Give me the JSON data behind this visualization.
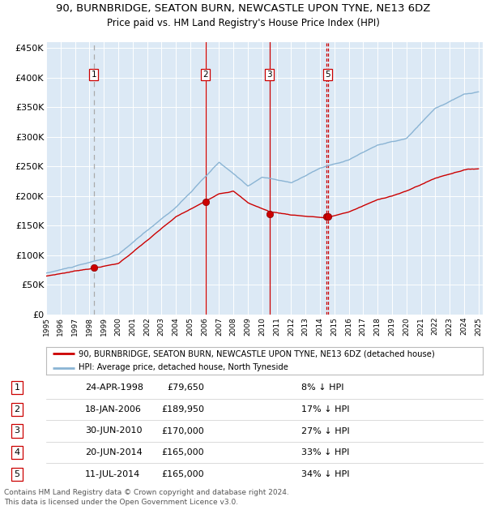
{
  "title_line1": "90, BURNBRIDGE, SEATON BURN, NEWCASTLE UPON TYNE, NE13 6DZ",
  "title_line2": "Price paid vs. HM Land Registry's House Price Index (HPI)",
  "fig_bg_color": "#ffffff",
  "plot_bg_color": "#dce9f5",
  "hpi_color": "#8ab4d4",
  "price_color": "#cc0000",
  "ylim": [
    0,
    460000
  ],
  "yticks": [
    0,
    50000,
    100000,
    150000,
    200000,
    250000,
    300000,
    350000,
    400000,
    450000
  ],
  "ytick_labels": [
    "£0",
    "£50K",
    "£100K",
    "£150K",
    "£200K",
    "£250K",
    "£300K",
    "£350K",
    "£400K",
    "£450K"
  ],
  "sale_dates_decimal": [
    1998.31,
    2006.05,
    2010.5,
    2014.47,
    2014.54
  ],
  "sale_prices": [
    79650,
    189950,
    170000,
    165000,
    165000
  ],
  "sale_labels": [
    "1",
    "2",
    "3",
    "4",
    "5"
  ],
  "sale_label_shown_on_chart": [
    1,
    2,
    3,
    5
  ],
  "legend_label_red": "90, BURNBRIDGE, SEATON BURN, NEWCASTLE UPON TYNE, NE13 6DZ (detached house)",
  "legend_label_blue": "HPI: Average price, detached house, North Tyneside",
  "table_data": [
    [
      "1",
      "24-APR-1998",
      "£79,650",
      "8% ↓ HPI"
    ],
    [
      "2",
      "18-JAN-2006",
      "£189,950",
      "17% ↓ HPI"
    ],
    [
      "3",
      "30-JUN-2010",
      "£170,000",
      "27% ↓ HPI"
    ],
    [
      "4",
      "20-JUN-2014",
      "£165,000",
      "33% ↓ HPI"
    ],
    [
      "5",
      "11-JUL-2014",
      "£165,000",
      "34% ↓ HPI"
    ]
  ],
  "footer_text": "Contains HM Land Registry data © Crown copyright and database right 2024.\nThis data is licensed under the Open Government Licence v3.0."
}
